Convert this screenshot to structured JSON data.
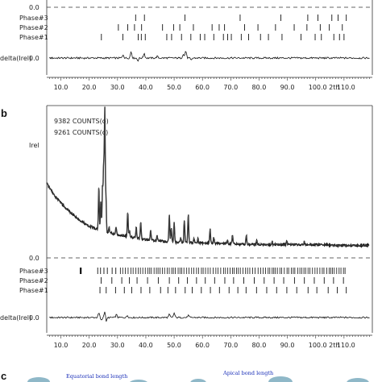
{
  "panel_labels": {
    "b": "b",
    "c": "c"
  },
  "bond_labels": {
    "equatorial": "Equatorial bond length",
    "apical": "Apical bond length"
  },
  "colors": {
    "ink": "#111111",
    "bond_text": "#1a2fb8",
    "atom": "#8fb8c8"
  },
  "chart_data": [
    {
      "type": "line",
      "panel": "a",
      "xlabel": "2th",
      "xlim": [
        5,
        120
      ],
      "x_ticks": [
        "10.0",
        "20.0",
        "30.0",
        "40.0",
        "50.0",
        "60.0",
        "70.0",
        "80.0",
        "90.0",
        "100.0",
        "110.0"
      ],
      "last_tick_prefix": "100.0 2th",
      "main_zero_label": "0.0",
      "diff_label": "delta(Irel)",
      "diff_zero_label": "0.0",
      "phase_labels": [
        "Phase#3",
        "Phase#2",
        "Phase#1"
      ],
      "phase_ticks": {
        "Phase#3": [
          36.4,
          39.5,
          53.8,
          73.3,
          87.7,
          97.2,
          100.8,
          105.7,
          107.9,
          110.8
        ],
        "Phase#2": [
          30.3,
          33.6,
          36.0,
          38.5,
          45.9,
          49.8,
          52.0,
          56.8,
          63.4,
          65.9,
          67.8,
          74.9,
          79.6,
          85.8,
          92.4,
          96.9,
          101.6,
          104.8,
          109.4
        ],
        "Phase#1": [
          24.3,
          31.9,
          37.3,
          38.4,
          39.8,
          47.4,
          49.1,
          52.6,
          55.9,
          59.2,
          60.8,
          64.0,
          67.4,
          68.9,
          70.2,
          73.7,
          76.3,
          80.5,
          83.3,
          88.1,
          94.8,
          99.8,
          102.0,
          106.4,
          108.4,
          110.0
        ]
      },
      "difference_features": [
        {
          "x": 32.0,
          "y": 4
        },
        {
          "x": 34.8,
          "y": 8
        },
        {
          "x": 37.2,
          "y": -3
        },
        {
          "x": 39.4,
          "y": 6
        },
        {
          "x": 44.0,
          "y": 2
        },
        {
          "x": 53.2,
          "y": 5
        },
        {
          "x": 54.1,
          "y": 9
        },
        {
          "x": 56.0,
          "y": -3
        }
      ]
    },
    {
      "type": "line",
      "panel": "b",
      "ylabel": "Irel",
      "xlabel": "2th",
      "xlim": [
        5,
        120
      ],
      "counts": [
        "9382 COUNTS(o)",
        "9261 COUNTS(c)"
      ],
      "x_ticks": [
        "10.0",
        "20.0",
        "30.0",
        "40.0",
        "50.0",
        "60.0",
        "70.0",
        "80.0",
        "90.0",
        "100.0",
        "110.0"
      ],
      "last_tick_prefix": "100.0 2th",
      "main_zero_label": "0.0",
      "diff_label": "delta(Irel)",
      "diff_zero_label": "0.0",
      "phase_labels": [
        "Phase#3",
        "Phase#2",
        "Phase#1"
      ],
      "background": {
        "x": [
          5,
          8,
          12,
          16,
          20,
          24,
          30,
          40,
          50,
          60,
          70,
          80,
          90,
          100,
          110,
          120
        ],
        "y": [
          90,
          74,
          59,
          47,
          38,
          33,
          28,
          22,
          19,
          18,
          17,
          16,
          16,
          16,
          15,
          15
        ]
      },
      "peaks": [
        {
          "x": 20.8,
          "h": 2
        },
        {
          "x": 23.4,
          "h": 53
        },
        {
          "x": 24.1,
          "h": 35
        },
        {
          "x": 24.7,
          "h": 52
        },
        {
          "x": 25.1,
          "h": 78
        },
        {
          "x": 25.5,
          "h": 148
        },
        {
          "x": 25.9,
          "h": 40
        },
        {
          "x": 27.0,
          "h": 7
        },
        {
          "x": 29.5,
          "h": 9
        },
        {
          "x": 33.6,
          "h": 30
        },
        {
          "x": 34.2,
          "h": 8
        },
        {
          "x": 36.6,
          "h": 13
        },
        {
          "x": 38.2,
          "h": 21
        },
        {
          "x": 41.7,
          "h": 12
        },
        {
          "x": 44.0,
          "h": 6
        },
        {
          "x": 48.3,
          "h": 33
        },
        {
          "x": 49.0,
          "h": 17
        },
        {
          "x": 50.0,
          "h": 24
        },
        {
          "x": 52.3,
          "h": 6
        },
        {
          "x": 53.6,
          "h": 27
        },
        {
          "x": 55.0,
          "h": 35
        },
        {
          "x": 57.0,
          "h": 6
        },
        {
          "x": 58.4,
          "h": 5
        },
        {
          "x": 62.7,
          "h": 18
        },
        {
          "x": 64.0,
          "h": 7
        },
        {
          "x": 68.8,
          "h": 5
        },
        {
          "x": 70.6,
          "h": 10
        },
        {
          "x": 75.5,
          "h": 11
        },
        {
          "x": 79.2,
          "h": 5
        },
        {
          "x": 84.6,
          "h": 4
        },
        {
          "x": 89.8,
          "h": 5
        },
        {
          "x": 96.0,
          "h": 4
        }
      ],
      "phase_ticks": {
        "Phase#3": [],
        "Phase#2": [
          24.2,
          28.0,
          31.5,
          34.2,
          36.9,
          40.6,
          44.4,
          48.3,
          51.6,
          54.7,
          57.9,
          61.0,
          64.3,
          67.9,
          71.0,
          74.6,
          78.3,
          81.8,
          85.3,
          88.7,
          92.5,
          96.0,
          99.5,
          103.0,
          106.3,
          109.8
        ],
        "Phase#1": [
          23.8,
          26.0,
          29.3,
          32.4,
          35.0,
          38.3,
          41.4,
          45.2,
          47.8,
          50.5,
          53.9,
          56.4,
          59.6,
          62.8,
          66.0,
          69.4,
          72.5,
          75.4,
          79.1,
          82.7,
          86.2,
          89.8,
          93.3,
          97.3,
          100.4,
          104.4,
          107.6,
          110.8
        ]
      },
      "phase3_ticks_isolated": [
        17.0,
        23.0,
        24.0,
        25.2,
        26.4,
        28.1,
        29.4
      ],
      "phase3_dense_range": [
        31.0,
        111.0
      ],
      "difference_features": [
        {
          "x": 23.4,
          "y": 6
        },
        {
          "x": 24.3,
          "y": -4
        },
        {
          "x": 25.5,
          "y": 9
        },
        {
          "x": 26.0,
          "y": -6
        },
        {
          "x": 29.6,
          "y": 4
        },
        {
          "x": 33.5,
          "y": 3
        },
        {
          "x": 48.3,
          "y": 4
        },
        {
          "x": 50.0,
          "y": 6
        },
        {
          "x": 55.0,
          "y": 3
        }
      ]
    }
  ]
}
